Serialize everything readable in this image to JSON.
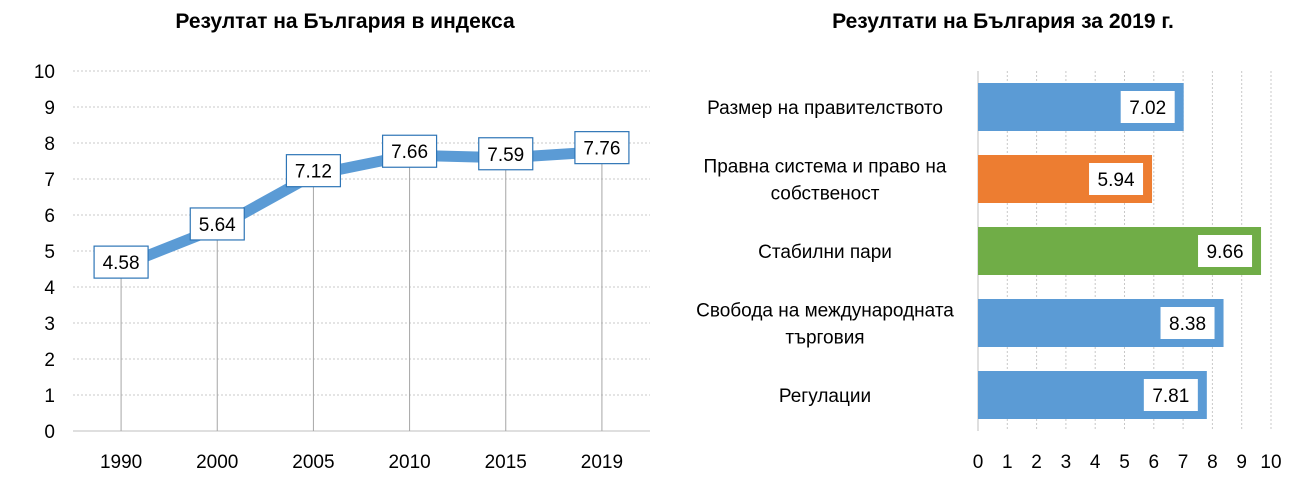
{
  "chart_data": [
    {
      "type": "line",
      "title": "Резултат на България в индекса",
      "xlabel": "",
      "ylabel": "",
      "x": [
        "1990",
        "2000",
        "2005",
        "2010",
        "2015",
        "2019"
      ],
      "values": [
        4.58,
        5.64,
        7.12,
        7.66,
        7.59,
        7.76
      ],
      "value_labels": [
        "4.58",
        "5.64",
        "7.12",
        "7.66",
        "7.59",
        "7.76"
      ],
      "y_ticks": [
        "0",
        "1",
        "2",
        "3",
        "4",
        "5",
        "6",
        "7",
        "8",
        "9",
        "10"
      ],
      "ylim": [
        0,
        10
      ],
      "grid": "horizontal dotted",
      "line_color": "#5b9bd5"
    },
    {
      "type": "bar",
      "orientation": "horizontal",
      "title": "Резултати на България за 2019 г.",
      "xlabel": "",
      "ylabel": "",
      "categories": [
        "Размер на правителството",
        "Правна система и право на собственост",
        "Стабилни пари",
        "Свобода на международната търговия",
        "Регулации"
      ],
      "category_lines": [
        [
          "Размер на правителството"
        ],
        [
          "Правна система и право на",
          "собственост"
        ],
        [
          "Стабилни пари"
        ],
        [
          "Свобода на международната",
          "търговия"
        ],
        [
          "Регулации"
        ]
      ],
      "values": [
        7.02,
        5.94,
        9.66,
        8.38,
        7.81
      ],
      "value_labels": [
        "7.02",
        "5.94",
        "9.66",
        "8.38",
        "7.81"
      ],
      "colors": [
        "#5b9bd5",
        "#ed7d31",
        "#70ad47",
        "#5b9bd5",
        "#5b9bd5"
      ],
      "x_ticks": [
        "0",
        "1",
        "2",
        "3",
        "4",
        "5",
        "6",
        "7",
        "8",
        "9",
        "10"
      ],
      "xlim": [
        0,
        10
      ],
      "grid": "vertical dotted"
    }
  ]
}
